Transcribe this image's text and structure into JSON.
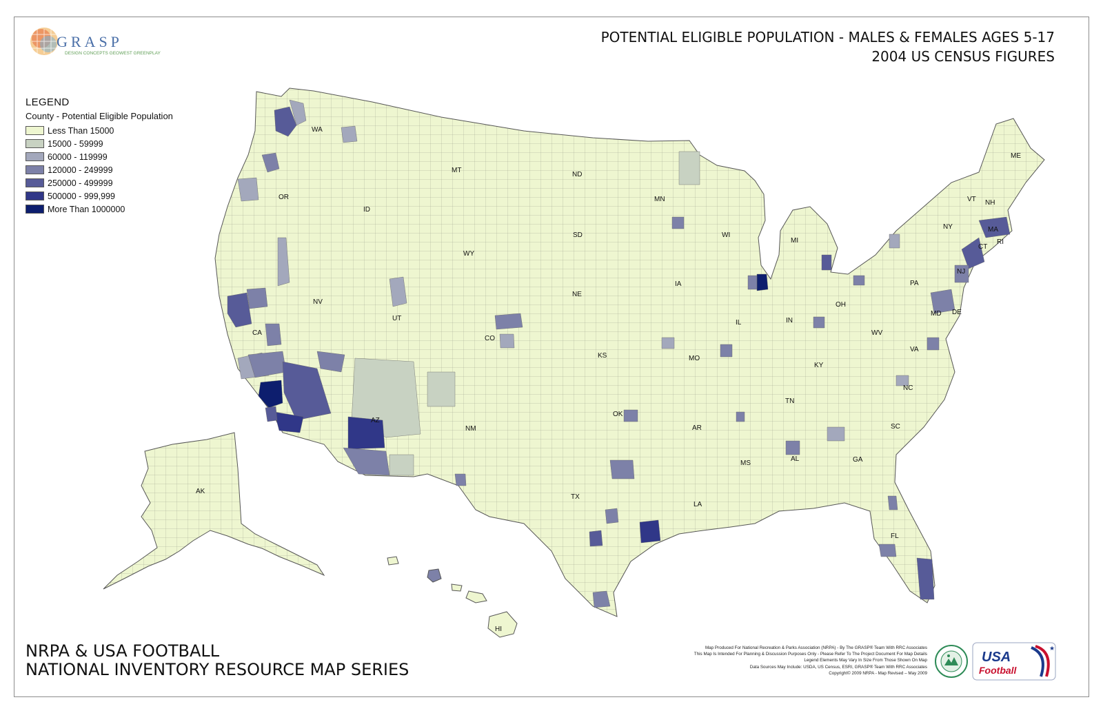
{
  "title": {
    "line1": "POTENTIAL ELIGIBLE POPULATION - MALES & FEMALES AGES 5-17",
    "line2": "2004 US CENSUS FIGURES"
  },
  "logo": {
    "name": "GRASP",
    "tagline": "DESIGN CONCEPTS  GEOWEST  GREENPLAY"
  },
  "legend": {
    "heading": "LEGEND",
    "subheading": "County - Potential Eligible Population",
    "items": [
      {
        "label": "Less Than 15000",
        "color": "#eef6d0"
      },
      {
        "label": "15000 - 59999",
        "color": "#c8d2c2"
      },
      {
        "label": "60000 - 119999",
        "color": "#a3a8bc"
      },
      {
        "label": "120000 - 249999",
        "color": "#7d81a8"
      },
      {
        "label": "250000 - 499999",
        "color": "#575b98"
      },
      {
        "label": "500000 - 999,999",
        "color": "#303788"
      },
      {
        "label": "More Than 1000000",
        "color": "#0d1e6e"
      }
    ]
  },
  "states": [
    "WA",
    "OR",
    "CA",
    "NV",
    "ID",
    "MT",
    "WY",
    "UT",
    "AZ",
    "CO",
    "NM",
    "ND",
    "SD",
    "NE",
    "KS",
    "OK",
    "TX",
    "MN",
    "IA",
    "MO",
    "AR",
    "LA",
    "WI",
    "IL",
    "MI",
    "IN",
    "OH",
    "KY",
    "TN",
    "MS",
    "AL",
    "GA",
    "FL",
    "SC",
    "NC",
    "VA",
    "WV",
    "PA",
    "NY",
    "VT",
    "NH",
    "ME",
    "MA",
    "CT",
    "RI",
    "NJ",
    "MD",
    "DE",
    "AK",
    "HI"
  ],
  "bottom_title": {
    "line1": "NRPA & USA FOOTBALL",
    "line2": "NATIONAL INVENTORY RESOURCE MAP SERIES"
  },
  "credits": [
    "Map Produced For National Recreation & Parks Association (NRPA) - By The GRASP® Team With RRC Associates",
    "This Map Is Intended For Planning & Discussion Purposes Only - Please Refer To The Project Document For Map Details",
    "Legend Elements May Vary In Size From Those Shown On Map",
    "Data Sources May Include: USDA, US Census, ESRI, GRASP® Team With RRC Associates",
    "Copyright© 2009 NRPA - Map Revised – May 2009"
  ],
  "partner_logos": {
    "usa_football": "USA Football"
  }
}
